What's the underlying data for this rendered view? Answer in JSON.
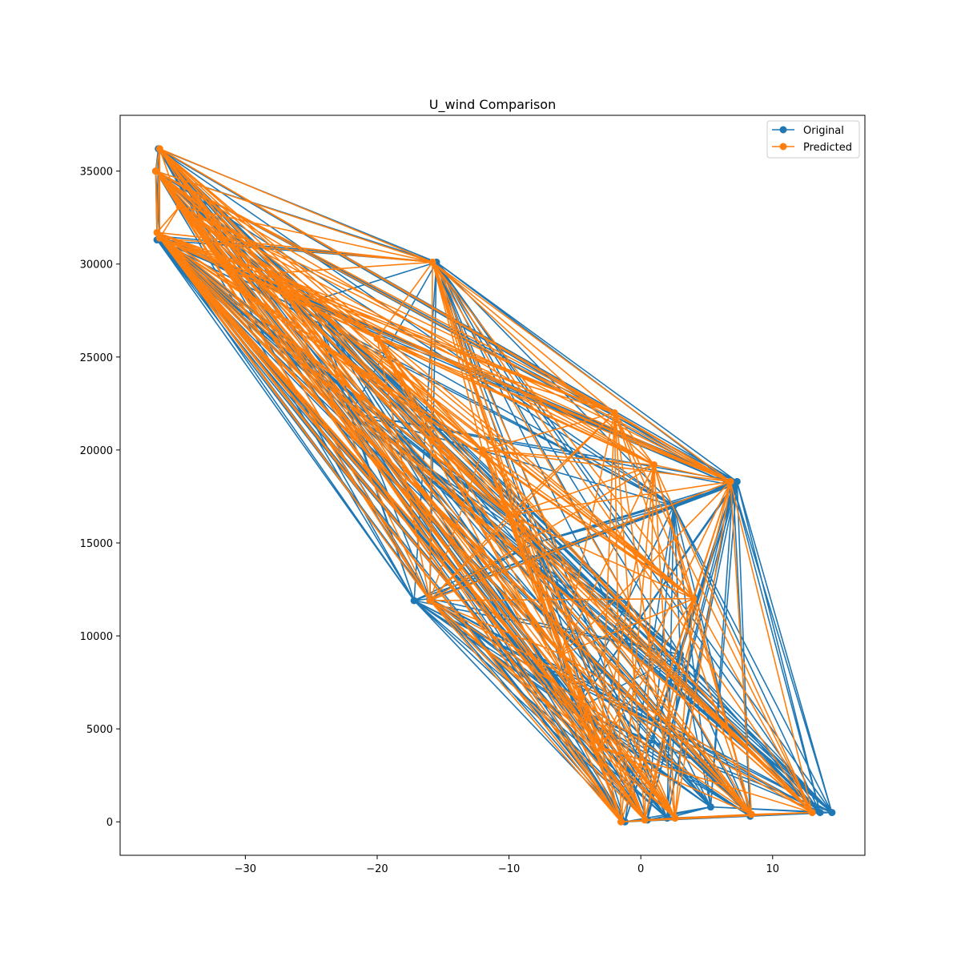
{
  "chart_data": {
    "type": "line",
    "title": "U_wind Comparison",
    "xlabel": "",
    "ylabel": "",
    "xlim": [
      -39.5,
      17
    ],
    "ylim": [
      -1800,
      38000
    ],
    "x_ticks": [
      -30,
      -20,
      -10,
      0,
      10
    ],
    "y_ticks": [
      0,
      5000,
      10000,
      15000,
      20000,
      25000,
      30000,
      35000
    ],
    "x_tick_labels": [
      "−30",
      "−20",
      "−10",
      "0",
      "10"
    ],
    "y_tick_labels": [
      "0",
      "5000",
      "10000",
      "15000",
      "20000",
      "25000",
      "30000",
      "35000"
    ],
    "grid": false,
    "legend_position": "upper right",
    "colors": {
      "Original": "#1f77b4",
      "Predicted": "#ff7f0e"
    },
    "series": [
      {
        "name": "Original",
        "marker": "o",
        "points": [
          [
            -36.8,
            35000
          ],
          [
            -36.6,
            36200
          ],
          [
            -36.7,
            31300
          ],
          [
            -36.5,
            31500
          ],
          [
            -15.5,
            30100
          ],
          [
            -17.2,
            11900
          ],
          [
            7.3,
            18300
          ],
          [
            7.0,
            18100
          ],
          [
            14.5,
            500
          ],
          [
            13.6,
            500
          ],
          [
            -1.2,
            0
          ],
          [
            0.5,
            100
          ],
          [
            2.0,
            200
          ],
          [
            8.3,
            300
          ],
          [
            5.3,
            800
          ],
          [
            -16.0,
            12000
          ],
          [
            3.0,
            9000
          ],
          [
            -8.0,
            15000
          ],
          [
            -22.0,
            22000
          ],
          [
            -5.0,
            6000
          ],
          [
            -25.0,
            28000
          ],
          [
            2.5,
            17000
          ]
        ]
      },
      {
        "name": "Predicted",
        "marker": "o",
        "points": [
          [
            -36.5,
            36200
          ],
          [
            -36.8,
            35000
          ],
          [
            -36.7,
            31700
          ],
          [
            -36.5,
            31400
          ],
          [
            -35.0,
            33100
          ],
          [
            -15.8,
            30100
          ],
          [
            -16.0,
            11900
          ],
          [
            6.8,
            18300
          ],
          [
            13.0,
            500
          ],
          [
            -1.5,
            0
          ],
          [
            0.3,
            100
          ],
          [
            2.6,
            200
          ],
          [
            8.4,
            400
          ],
          [
            1.0,
            19200
          ],
          [
            -12.0,
            20000
          ],
          [
            -3.0,
            4000
          ],
          [
            -20.0,
            26000
          ],
          [
            4.0,
            12000
          ],
          [
            -6.0,
            9000
          ],
          [
            -28.0,
            29500
          ],
          [
            -10.0,
            16500
          ],
          [
            -2.0,
            22000
          ]
        ]
      }
    ]
  }
}
